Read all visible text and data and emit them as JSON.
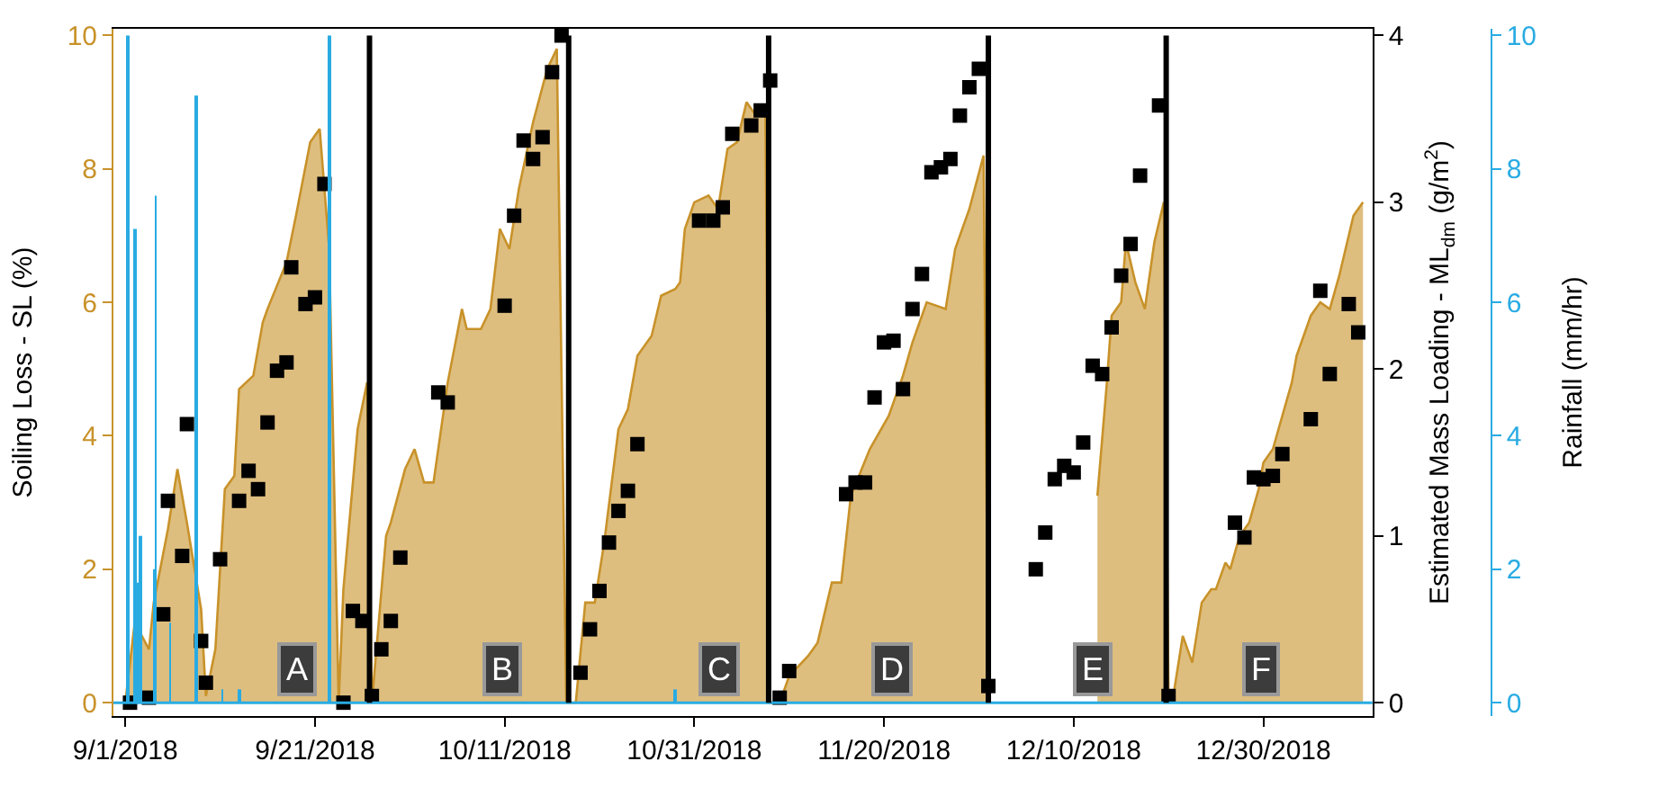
{
  "chart_data": {
    "type": "area",
    "ylabel": "Soiling Loss - SL (%)",
    "y2label": "Estimated Mass Loading - ML$_{dm}$ (g/m$^{2}$)",
    "y3label": "Rainfall (mm/hr)",
    "xlim": [
      "2018-08-30T18:00",
      "2019-01-10T12:00"
    ],
    "xticks": [
      {
        "value": "2018-09-01",
        "label": "9/1/2018"
      },
      {
        "value": "2018-09-21",
        "label": "9/21/2018"
      },
      {
        "value": "2018-10-11",
        "label": "10/11/2018"
      },
      {
        "value": "2018-10-31",
        "label": "10/31/2018"
      },
      {
        "value": "2018-11-20",
        "label": "11/20/2018"
      },
      {
        "value": "2018-12-10",
        "label": "12/10/2018"
      },
      {
        "value": "2018-12-30",
        "label": "12/30/2018"
      }
    ],
    "ylim": [
      -0.2,
      10.1
    ],
    "yticks": [
      0,
      2,
      4,
      6,
      8,
      10
    ],
    "y2lim": [
      -0.08,
      4.04
    ],
    "y2ticks": [
      0,
      1,
      2,
      3,
      4
    ],
    "y3lim": [
      -0.2,
      10.1
    ],
    "y3ticks": [
      0,
      2,
      4,
      6,
      8,
      10
    ],
    "series": [
      {
        "color": "#c8922a",
        "x": [
          "2018-09-01",
          "2018-09-02",
          "2018-09-03T12:00",
          "2018-09-04",
          "2018-09-05T12:00",
          "2018-09-06T12:00",
          "2018-09-07T12:00",
          "2018-09-09",
          "2018-09-09T12:00",
          "2018-09-10T12:00",
          "2018-09-11T12:00",
          "2018-09-12T12:00",
          "2018-09-13",
          "2018-09-14T12:00",
          "2018-09-15T12:00",
          "2018-09-16",
          "2018-09-18",
          "2018-09-19",
          "2018-09-20T12:00",
          "2018-09-21T12:00",
          "2018-09-22T12:00",
          "2018-09-23T12:00",
          "2018-09-24",
          "2018-09-25T12:00",
          "2018-09-26T12:00",
          "2018-09-27",
          "2018-09-28T12:00",
          "2018-09-29",
          "2018-09-30T12:00",
          "2018-10-01T12:00",
          "2018-10-02T12:00",
          "2018-10-03T12:00",
          "2018-10-05",
          "2018-10-06T12:00",
          "2018-10-07",
          "2018-10-08T12:00",
          "2018-10-09T12:00",
          "2018-10-10T12:00",
          "2018-10-11T12:00",
          "2018-10-12T12:00",
          "2018-10-14",
          "2018-10-15T12:00",
          "2018-10-16T12:00",
          "2018-10-17T12:00",
          "2018-10-18T12:00",
          "2018-10-19T12:00",
          "2018-10-20T12:00",
          "2018-10-21T12:00",
          "2018-10-23",
          "2018-10-24",
          "2018-10-25",
          "2018-10-26T12:00",
          "2018-10-27T12:00",
          "2018-10-29",
          "2018-10-29T12:00",
          "2018-10-30",
          "2018-10-31",
          "2018-11-01T12:00",
          "2018-11-02T12:00",
          "2018-11-03T12:00",
          "2018-11-04T12:00",
          "2018-11-05T12:00",
          "2018-11-06T12:00",
          "2018-11-07T12:00",
          "2018-11-08",
          "2018-11-09",
          "2018-11-10",
          "2018-11-12",
          "2018-11-13",
          "2018-11-14T12:00",
          "2018-11-15T12:00",
          "2018-11-16T12:00",
          "2018-11-18T12:00",
          "2018-11-20T12:00",
          "2018-11-22",
          "2018-11-23",
          "2018-11-24T12:00",
          "2018-11-26T12:00",
          "2018-11-27T12:00",
          "2018-11-29",
          "2018-11-30T12:00",
          "2018-12-01",
          "2018-12-05",
          "2018-12-12T12:00",
          "2018-12-13T12:00",
          "2018-12-14",
          "2018-12-15",
          "2018-12-15T12:00",
          "2018-12-16T12:00",
          "2018-12-17T12:00",
          "2018-12-18T12:00",
          "2018-12-19T12:00",
          "2018-12-20",
          "2018-12-20T12:00",
          "2018-12-21T12:00",
          "2018-12-22T12:00",
          "2018-12-23T12:00",
          "2018-12-24T12:00",
          "2018-12-25",
          "2018-12-26",
          "2018-12-26T12:00",
          "2018-12-27T12:00",
          "2018-12-28T12:00",
          "2018-12-29T12:00",
          "2018-12-30",
          "2018-12-31",
          "2019-01-01",
          "2019-01-02",
          "2019-01-02T12:00",
          "2019-01-04",
          "2019-01-05",
          "2019-01-06",
          "2019-01-07",
          "2019-01-08T12:00",
          "2019-01-09T12:00"
        ],
        "values": [
          0,
          1.2,
          0.8,
          1.5,
          2.6,
          3.5,
          2.7,
          1.4,
          0.1,
          0.8,
          3.2,
          3.4,
          4.7,
          4.9,
          5.7,
          5.9,
          6.6,
          7.3,
          8.4,
          8.6,
          6.8,
          0,
          1.7,
          4.1,
          4.8,
          0,
          2.5,
          2.7,
          3.5,
          3.8,
          3.3,
          3.3,
          4.8,
          5.9,
          5.6,
          5.6,
          5.9,
          7.1,
          6.8,
          7.7,
          8.7,
          9.5,
          9.8,
          0,
          0,
          1.5,
          1.5,
          2.4,
          4.1,
          4.4,
          5.2,
          5.5,
          6.1,
          6.2,
          6.3,
          7.1,
          7.5,
          7.6,
          7.4,
          8.3,
          8.4,
          9.0,
          8.8,
          8.8,
          0,
          0,
          0.4,
          0.7,
          0.9,
          1.8,
          1.8,
          3.1,
          3.8,
          4.3,
          4.9,
          5.4,
          6.0,
          5.9,
          6.8,
          7.4,
          8.2,
          0,
          null,
          3.1,
          4.8,
          5.8,
          6.0,
          6.9,
          6.3,
          5.9,
          6.9,
          7.5,
          0,
          0.1,
          1.0,
          0.6,
          1.5,
          1.7,
          1.7,
          2.1,
          2.0,
          2.5,
          2.7,
          3.2,
          3.6,
          3.8,
          4.3,
          4.8,
          5.2,
          5.8,
          6.0,
          5.9,
          6.4,
          7.3,
          7.5
        ]
      },
      {
        "type": "scatter",
        "axis": "y2",
        "marker": "square",
        "color": "#000000",
        "x": [
          "2018-09-01T12:00",
          "2018-09-03T12:00",
          "2018-09-05",
          "2018-09-05T12:00",
          "2018-09-07",
          "2018-09-07T12:00",
          "2018-09-09",
          "2018-09-09T12:00",
          "2018-09-11",
          "2018-09-13",
          "2018-09-14",
          "2018-09-15",
          "2018-09-16",
          "2018-09-17",
          "2018-09-18",
          "2018-09-18T12:00",
          "2018-09-20",
          "2018-09-21",
          "2018-09-22",
          "2018-09-24",
          "2018-09-25",
          "2018-09-26",
          "2018-09-27",
          "2018-09-28",
          "2018-09-29",
          "2018-09-30",
          "2018-10-04",
          "2018-10-05",
          "2018-10-11",
          "2018-10-12",
          "2018-10-13",
          "2018-10-14",
          "2018-10-15",
          "2018-10-16",
          "2018-10-17",
          "2018-10-19",
          "2018-10-20",
          "2018-10-21",
          "2018-10-22",
          "2018-10-23",
          "2018-10-24",
          "2018-10-25",
          "2018-10-31T12:00",
          "2018-11-02",
          "2018-11-03",
          "2018-11-04",
          "2018-11-06",
          "2018-11-07",
          "2018-11-08",
          "2018-11-09",
          "2018-11-10",
          "2018-11-16",
          "2018-11-17",
          "2018-11-18",
          "2018-11-19",
          "2018-11-20",
          "2018-11-21",
          "2018-11-22",
          "2018-11-23",
          "2018-11-24",
          "2018-11-25",
          "2018-11-26",
          "2018-11-27",
          "2018-11-28",
          "2018-11-29",
          "2018-11-30",
          "2018-12-01",
          "2018-12-06",
          "2018-12-07",
          "2018-12-08",
          "2018-12-09",
          "2018-12-10",
          "2018-12-11",
          "2018-12-12",
          "2018-12-13",
          "2018-12-14",
          "2018-12-15",
          "2018-12-16",
          "2018-12-17",
          "2018-12-19",
          "2018-12-20",
          "2018-12-27",
          "2018-12-28",
          "2018-12-29",
          "2018-12-30",
          "2018-12-31",
          "2019-01-01",
          "2019-01-04",
          "2019-01-05",
          "2019-01-06",
          "2019-01-08",
          "2019-01-09"
        ],
        "values": [
          0,
          0.03,
          0.53,
          1.21,
          0.88,
          1.67,
          0.37,
          0.12,
          0.86,
          1.21,
          1.39,
          1.28,
          1.68,
          1.99,
          2.04,
          2.61,
          2.39,
          2.43,
          3.11,
          0,
          0.55,
          0.49,
          0.04,
          0.32,
          0.49,
          0.87,
          1.86,
          1.8,
          2.38,
          2.92,
          3.37,
          3.26,
          3.39,
          3.78,
          4.0,
          0.18,
          0.44,
          0.67,
          0.96,
          1.15,
          1.27,
          1.55,
          2.89,
          2.89,
          2.97,
          3.41,
          3.46,
          3.55,
          3.73,
          0.03,
          0.19,
          1.25,
          1.32,
          1.32,
          1.83,
          2.16,
          2.17,
          1.88,
          2.36,
          2.57,
          3.18,
          3.21,
          3.26,
          3.52,
          3.69,
          3.8,
          0.1,
          0.8,
          1.02,
          1.34,
          1.42,
          1.38,
          1.56,
          2.02,
          1.97,
          2.25,
          2.56,
          2.75,
          3.16,
          3.58,
          0.04,
          1.08,
          0.99,
          1.35,
          1.34,
          1.36,
          1.49,
          1.7,
          2.47,
          1.97,
          2.39,
          2.22
        ]
      },
      {
        "type": "bar",
        "axis": "y3",
        "color": "#29abe2",
        "x": [
          "2018-09-01T06:00",
          "2018-09-02T02:00",
          "2018-09-02T09:00",
          "2018-09-02T14:00",
          "2018-09-04",
          "2018-09-04T05:00",
          "2018-09-05T17:00",
          "2018-09-08T12:00",
          "2018-09-11T05:00",
          "2018-09-13",
          "2018-09-22T14:00",
          "2018-10-29"
        ],
        "values": [
          10,
          7.1,
          1.8,
          2.5,
          2.0,
          7.6,
          1.2,
          9.1,
          0.2,
          0.2,
          10,
          0.2
        ]
      }
    ],
    "ref_lines": [
      {
        "axis": "y3",
        "value": 0,
        "color": "#29abe2"
      },
      {
        "axis": "x",
        "value": "2018-09-26T18:00",
        "color": "#000000"
      },
      {
        "axis": "x",
        "value": "2018-10-17T18:00",
        "color": "#000000"
      },
      {
        "axis": "x",
        "value": "2018-11-07T20:00",
        "color": "#000000"
      },
      {
        "axis": "x",
        "value": "2018-12-01",
        "color": "#000000"
      },
      {
        "axis": "x",
        "value": "2018-12-19T18:00",
        "color": "#000000"
      }
    ],
    "annotations": [
      "A",
      "B",
      "C",
      "D",
      "E",
      "F"
    ]
  }
}
